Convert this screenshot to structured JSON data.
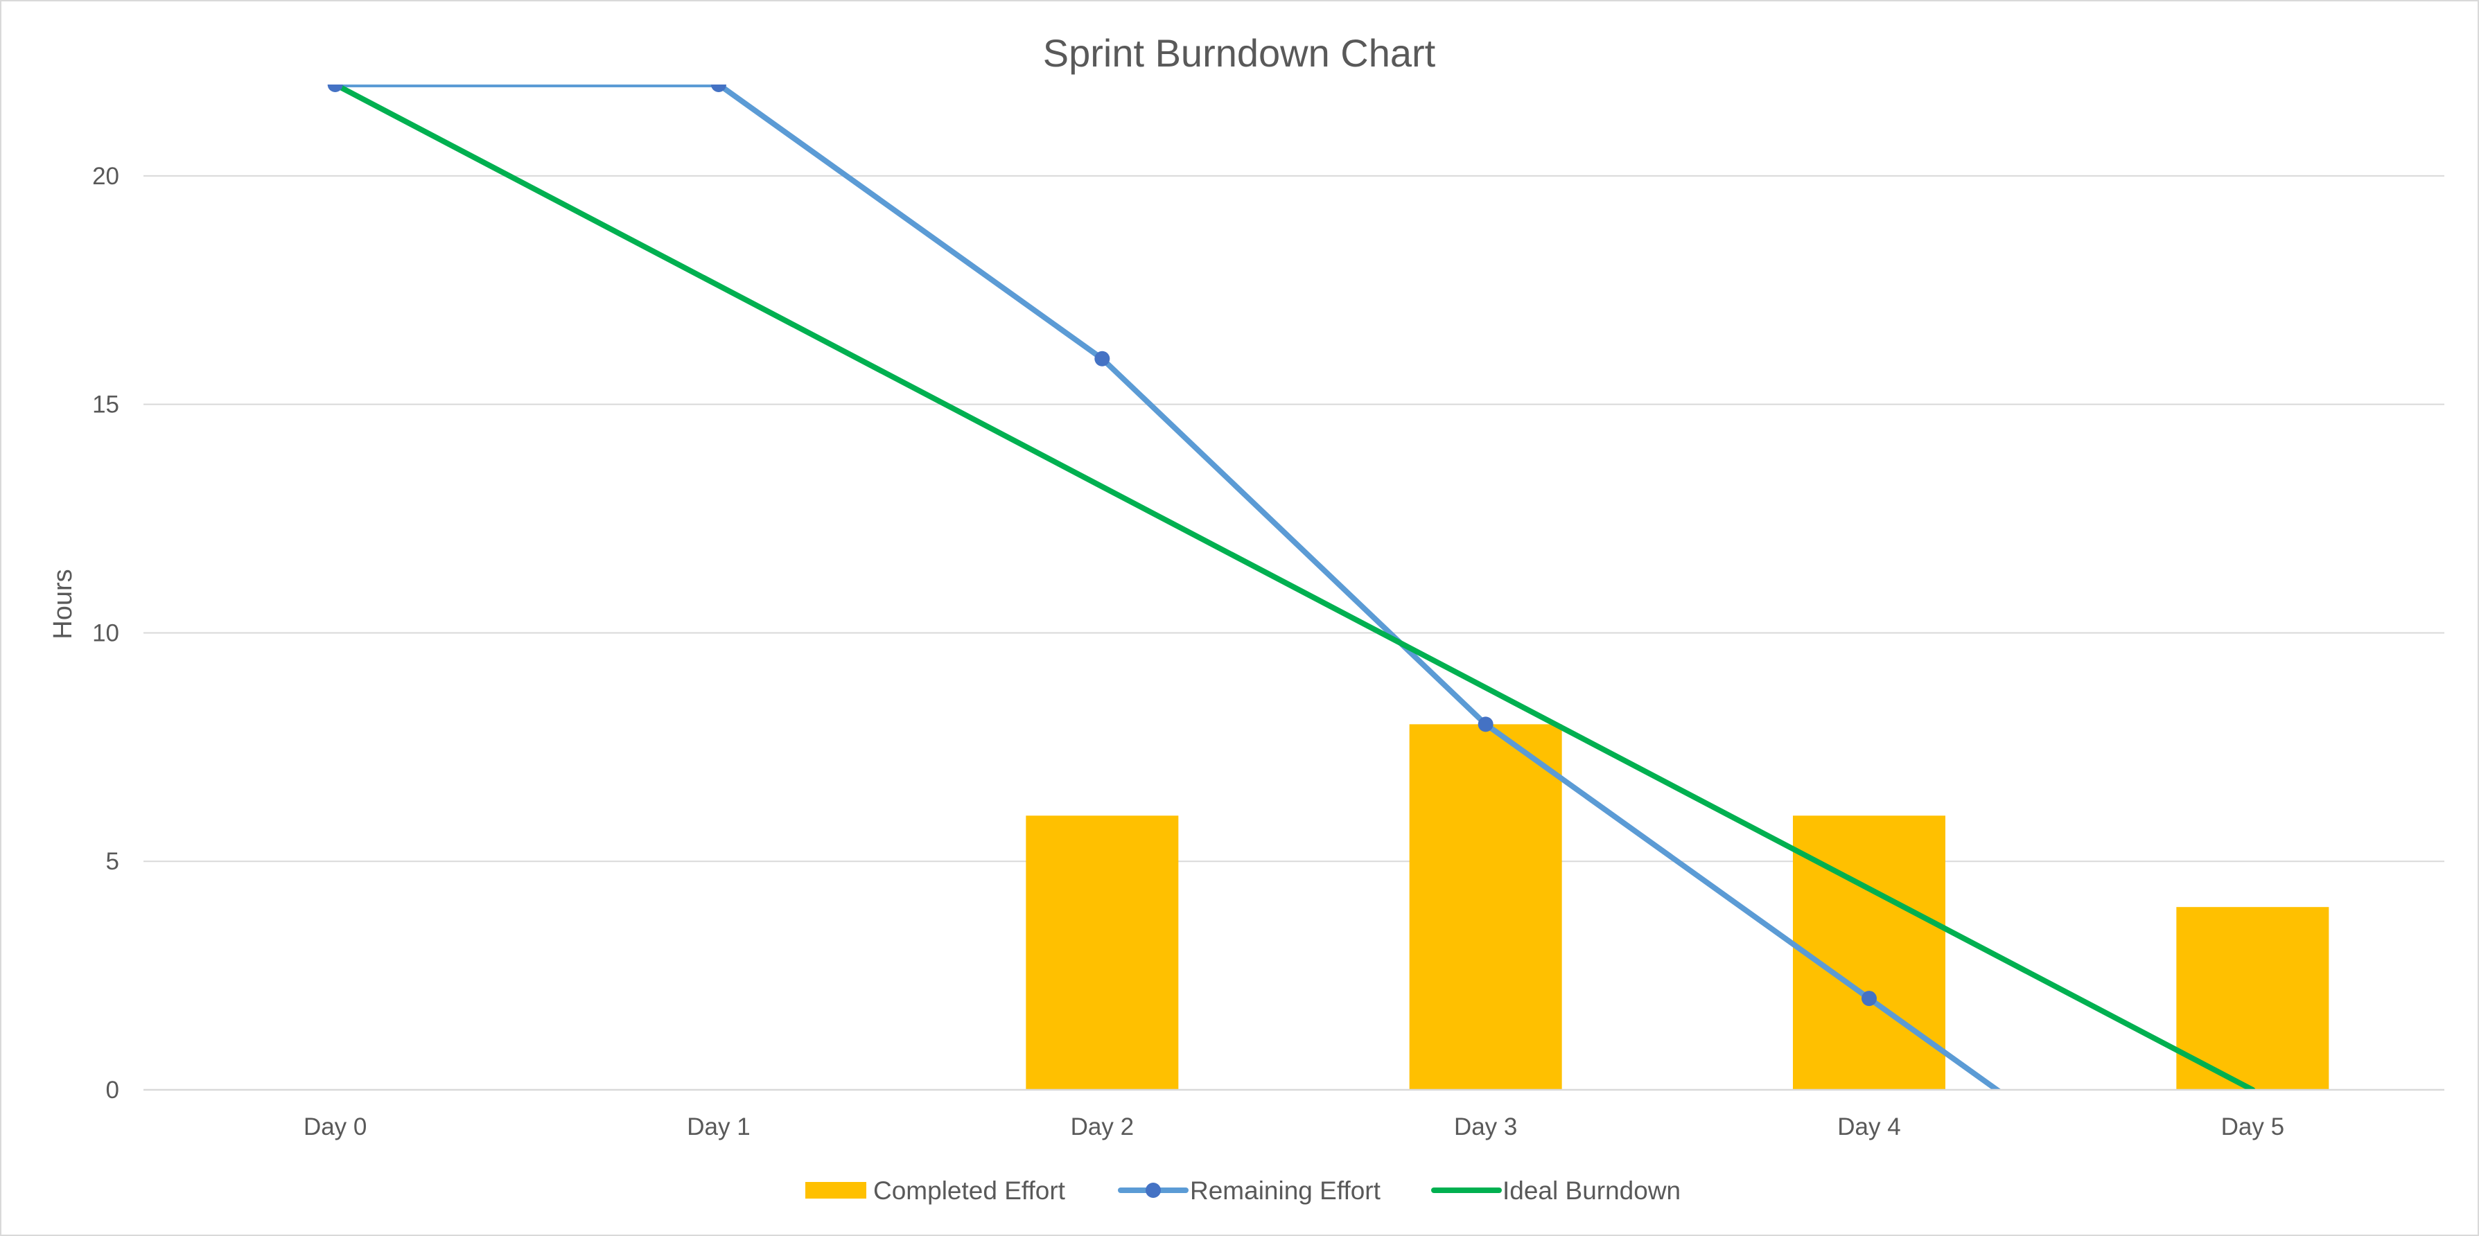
{
  "chart_data": {
    "type": "bar",
    "title": "Sprint Burndown Chart",
    "xlabel": "",
    "ylabel": "Hours",
    "categories": [
      "Day 0",
      "Day 1",
      "Day 2",
      "Day 3",
      "Day 4",
      "Day 5"
    ],
    "ylim": [
      0,
      22
    ],
    "yticks": [
      0,
      5,
      10,
      15,
      20
    ],
    "grid": true,
    "legend_position": "bottom",
    "series": [
      {
        "name": "Completed Effort",
        "type": "bar",
        "color": "#ffc000",
        "values": [
          0,
          0,
          6,
          8,
          6,
          4
        ]
      },
      {
        "name": "Remaining Effort",
        "type": "line",
        "marker": "circle",
        "color": "#5b9bd5",
        "marker_color": "#4472c4",
        "values": [
          22,
          22,
          16,
          8,
          2,
          -4
        ]
      },
      {
        "name": "Ideal Burndown",
        "type": "line",
        "marker": "none",
        "color": "#00b050",
        "values": [
          22,
          17.6,
          13.2,
          8.8,
          4.4,
          0
        ]
      }
    ]
  }
}
